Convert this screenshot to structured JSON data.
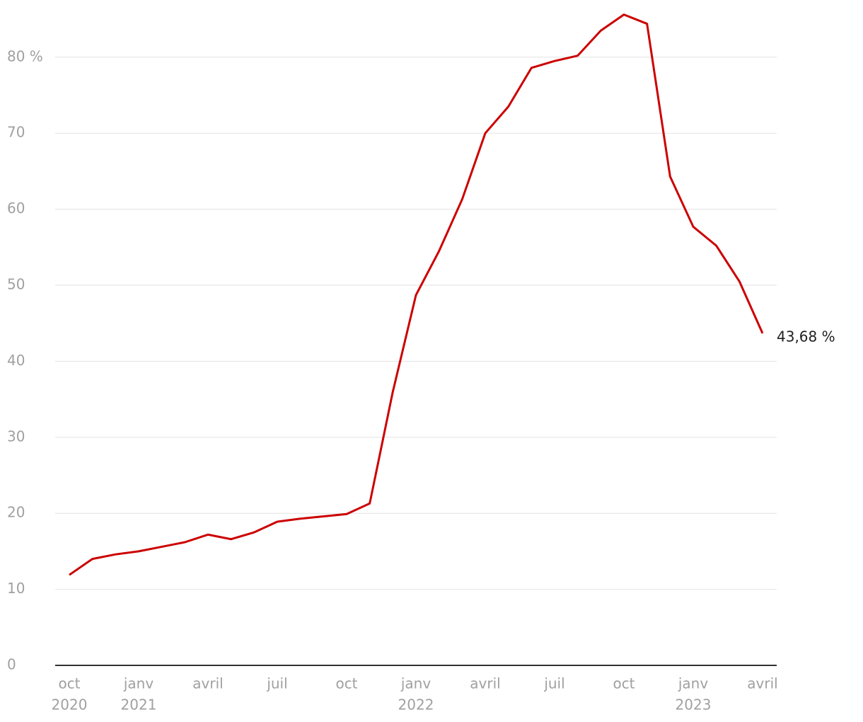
{
  "chart_data": {
    "type": "line",
    "categories": [
      "oct",
      null,
      null,
      "janv",
      null,
      null,
      "avril",
      null,
      null,
      "juil",
      null,
      null,
      "oct",
      null,
      null,
      "janv",
      null,
      null,
      "avril",
      null,
      null,
      "juil",
      null,
      null,
      "oct",
      null,
      null,
      "janv",
      null,
      null,
      "avril"
    ],
    "category_years": [
      "2020",
      null,
      null,
      "2021",
      null,
      null,
      null,
      null,
      null,
      null,
      null,
      null,
      null,
      null,
      null,
      "2022",
      null,
      null,
      null,
      null,
      null,
      null,
      null,
      null,
      null,
      null,
      null,
      "2023",
      null,
      null,
      null
    ],
    "series": [
      {
        "color": "#cc0000",
        "values": [
          11.9,
          14.0,
          14.6,
          15.0,
          15.6,
          16.2,
          17.2,
          16.6,
          17.5,
          18.9,
          19.3,
          19.6,
          19.9,
          21.3,
          36.0,
          48.7,
          54.5,
          61.3,
          70.0,
          73.5,
          78.6,
          79.5,
          80.2,
          83.5,
          85.6,
          84.4,
          64.3,
          57.7,
          55.2,
          50.5,
          43.68
        ],
        "value_labels": [
          null,
          null,
          null,
          null,
          null,
          null,
          null,
          null,
          null,
          null,
          null,
          null,
          null,
          null,
          null,
          null,
          null,
          null,
          null,
          null,
          null,
          null,
          null,
          null,
          null,
          null,
          null,
          null,
          null,
          null,
          "43,68 %"
        ]
      }
    ],
    "ylim": [
      0,
      87
    ],
    "yticks": [
      0,
      10,
      20,
      30,
      40,
      50,
      60,
      {
        "value": 70,
        "label": "70"
      },
      {
        "value": 80,
        "label": "80 %"
      }
    ],
    "grid": true
  }
}
